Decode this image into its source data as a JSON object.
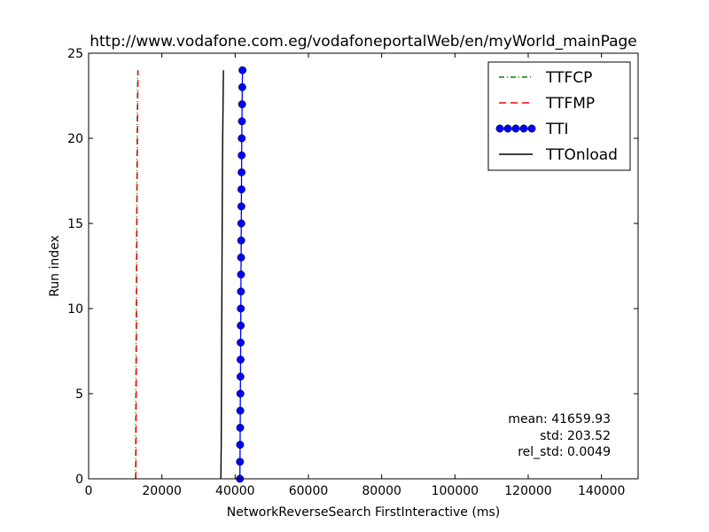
{
  "chart_data": {
    "type": "line",
    "title": "http://www.vodafone.com.eg/vodafoneportalWeb/en/myWorld_mainPage",
    "xlabel": "NetworkReverseSearch FirstInteractive (ms)",
    "ylabel": "Run index",
    "xlim": [
      0,
      150000
    ],
    "ylim": [
      0,
      25
    ],
    "xticks": [
      0,
      20000,
      40000,
      60000,
      80000,
      100000,
      120000,
      140000
    ],
    "yticks": [
      0,
      5,
      10,
      15,
      20,
      25
    ],
    "legend_position": "top-right",
    "series": [
      {
        "name": "TTFCP",
        "color": "#008000",
        "style": "dash-dot",
        "x": [
          12800,
          12820,
          12840,
          12850,
          12860,
          12880,
          12900,
          12920,
          12950,
          12980,
          13000,
          13020,
          13040,
          13060,
          13080,
          13100,
          13120,
          13150,
          13180,
          13200,
          13230,
          13260,
          13300,
          13350,
          13400
        ],
        "y": [
          0,
          1,
          2,
          3,
          4,
          5,
          6,
          7,
          8,
          9,
          10,
          11,
          12,
          13,
          14,
          15,
          16,
          17,
          18,
          19,
          20,
          21,
          22,
          23,
          24
        ]
      },
      {
        "name": "TTFMP",
        "color": "#ff0000",
        "style": "dashed",
        "x": [
          12900,
          12920,
          12940,
          12960,
          12980,
          13000,
          13020,
          13040,
          13060,
          13080,
          13100,
          13120,
          13140,
          13160,
          13180,
          13200,
          13220,
          13250,
          13280,
          13310,
          13340,
          13370,
          13400,
          13450,
          13500
        ],
        "y": [
          0,
          1,
          2,
          3,
          4,
          5,
          6,
          7,
          8,
          9,
          10,
          11,
          12,
          13,
          14,
          15,
          16,
          17,
          18,
          19,
          20,
          21,
          22,
          23,
          24
        ]
      },
      {
        "name": "TTI",
        "color": "#0000ff",
        "style": "solid-markers",
        "x": [
          41300,
          41320,
          41350,
          41380,
          41400,
          41420,
          41450,
          41480,
          41500,
          41520,
          41550,
          41580,
          41600,
          41620,
          41650,
          41680,
          41700,
          41720,
          41750,
          41780,
          41800,
          41850,
          41900,
          41950,
          42000
        ],
        "y": [
          0,
          1,
          2,
          3,
          4,
          5,
          6,
          7,
          8,
          9,
          10,
          11,
          12,
          13,
          14,
          15,
          16,
          17,
          18,
          19,
          20,
          21,
          22,
          23,
          24
        ]
      },
      {
        "name": "TTOnload",
        "color": "#000000",
        "style": "solid",
        "x": [
          36100,
          36150,
          36200,
          36220,
          36240,
          36260,
          36280,
          36300,
          36320,
          36340,
          36360,
          36380,
          36400,
          36420,
          36440,
          36460,
          36480,
          36500,
          36520,
          36560,
          36600,
          36650,
          36700,
          36750,
          36800
        ],
        "y": [
          0,
          1,
          2,
          3,
          4,
          5,
          6,
          7,
          8,
          9,
          10,
          11,
          12,
          13,
          14,
          15,
          16,
          17,
          18,
          19,
          20,
          21,
          22,
          23,
          24
        ]
      }
    ],
    "stats": {
      "mean": "mean: 41659.93",
      "std": "std: 203.52",
      "rel_std": "rel_std: 0.0049"
    }
  }
}
